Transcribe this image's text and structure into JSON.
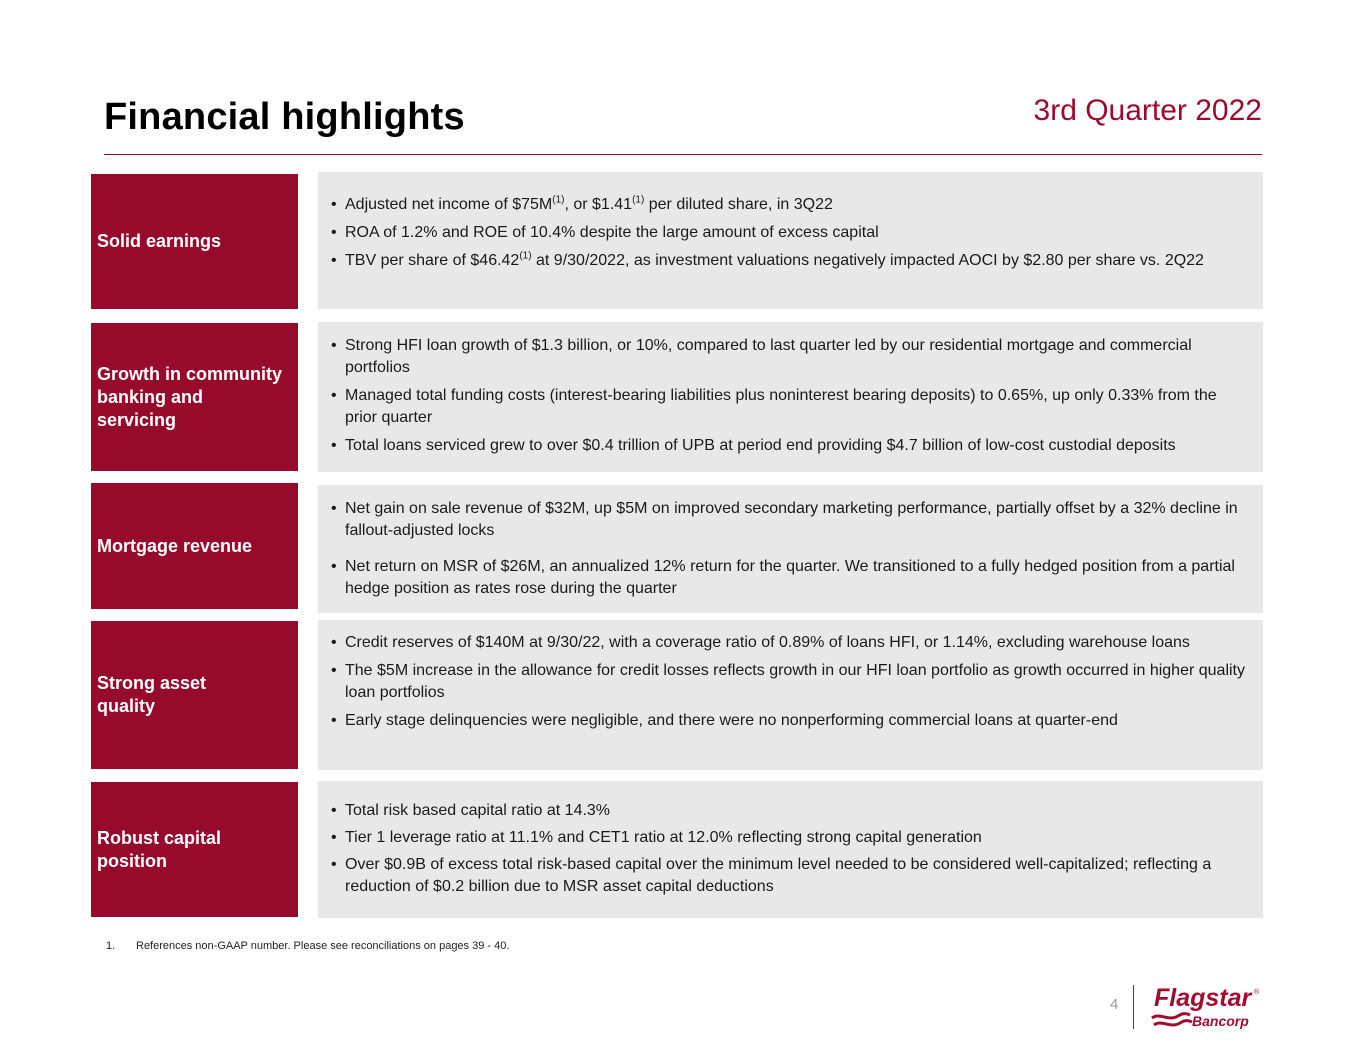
{
  "header": {
    "title": "Financial highlights",
    "quarter": "3rd Quarter 2022"
  },
  "colors": {
    "accent": "#960a2c",
    "panel": "#e8e8e8"
  },
  "sections": [
    {
      "label": "Solid earnings",
      "bullets": [
        {
          "parts": [
            {
              "t": "Adjusted net income of $75M"
            },
            {
              "sup": "(1)"
            },
            {
              "t": ", or $1.41"
            },
            {
              "sup": "(1)"
            },
            {
              "t": " per diluted share, in 3Q22"
            }
          ]
        },
        {
          "parts": [
            {
              "t": "ROA of 1.2% and ROE of 10.4% despite the large amount of excess capital"
            }
          ]
        },
        {
          "parts": [
            {
              "t": "TBV per share of $46.42"
            },
            {
              "sup": "(1)"
            },
            {
              "t": " at 9/30/2022, as investment valuations negatively impacted AOCI by $2.80 per share vs. 2Q22"
            }
          ]
        }
      ]
    },
    {
      "label": "Growth in community\nbanking and\nservicing",
      "bullets": [
        {
          "parts": [
            {
              "t": "Strong HFI loan growth of $1.3 billion, or 10%, compared to last quarter led by our residential mortgage and commercial portfolios"
            }
          ]
        },
        {
          "parts": [
            {
              "t": "Managed total funding costs (interest-bearing liabilities plus noninterest bearing deposits) to 0.65%, up only 0.33% from the prior quarter"
            }
          ]
        },
        {
          "parts": [
            {
              "t": "Total loans serviced grew to over $0.4 trillion of UPB at period end providing $4.7 billion of low-cost custodial deposits"
            }
          ]
        }
      ]
    },
    {
      "label": "Mortgage revenue",
      "bullets": [
        {
          "parts": [
            {
              "t": "Net gain on sale revenue of $32M, up $5M on improved secondary marketing performance, partially offset by a 32% decline in fallout-adjusted locks"
            }
          ]
        },
        {
          "parts": [
            {
              "t": "Net return on MSR of $26M, an annualized 12% return for the quarter. We transitioned to a fully hedged position from a partial hedge position as rates rose during the quarter"
            }
          ]
        }
      ]
    },
    {
      "label": "Strong asset\nquality",
      "bullets": [
        {
          "parts": [
            {
              "t": "Credit reserves of $140M at 9/30/22, with a coverage ratio of 0.89% of loans HFI, or 1.14%, excluding warehouse loans"
            }
          ]
        },
        {
          "parts": [
            {
              "t": "The $5M increase in the allowance for credit losses reflects growth in our HFI loan portfolio as growth occurred in higher quality loan portfolios"
            }
          ]
        },
        {
          "parts": [
            {
              "t": "Early stage delinquencies were negligible, and there were no nonperforming commercial loans at quarter-end"
            }
          ]
        }
      ]
    },
    {
      "label": "Robust capital\nposition",
      "bullets": [
        {
          "parts": [
            {
              "t": "Total risk based capital ratio at 14.3%"
            }
          ]
        },
        {
          "parts": [
            {
              "t": "Tier 1 leverage ratio at 11.1% and CET1 ratio at 12.0% reflecting strong capital generation"
            }
          ]
        },
        {
          "parts": [
            {
              "t": "Over $0.9B of excess total risk-based capital over the minimum level needed to be considered well-capitalized; reflecting a reduction of $0.2 billion due to MSR asset capital deductions"
            }
          ]
        }
      ]
    }
  ],
  "footnote": {
    "number": "1.",
    "text": "References non-GAAP number. Please see reconciliations on pages 39 - 40."
  },
  "footer": {
    "page_number": "4",
    "logo_name": "Flagstar",
    "logo_sub": "Bancorp",
    "logo_mark": "®"
  }
}
